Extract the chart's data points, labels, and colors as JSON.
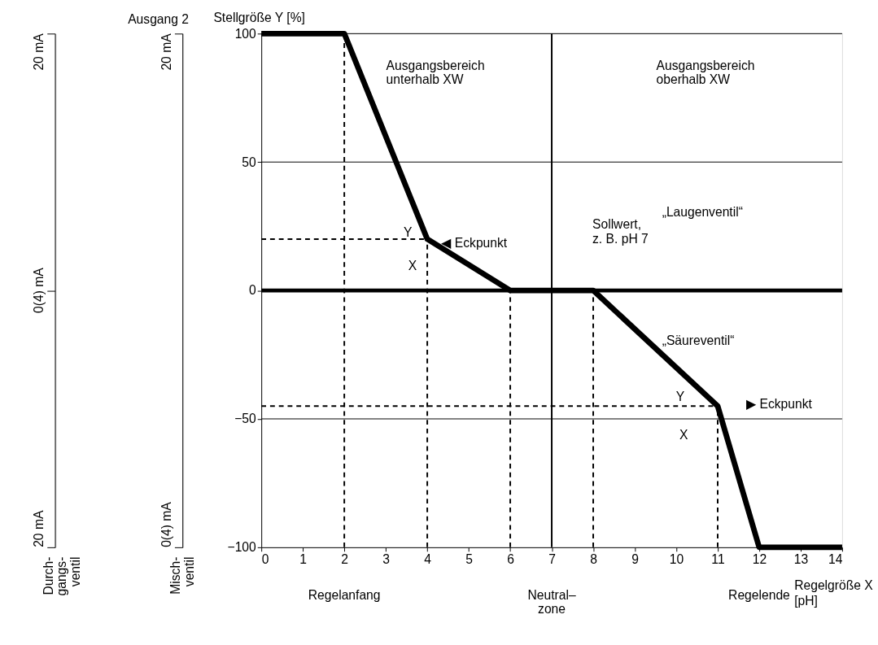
{
  "chart_data": {
    "type": "line",
    "xlabel": "Regelgröße X\n[pH]",
    "ylabel": "Stellgröße Y [%]",
    "xlim": [
      0,
      14
    ],
    "xticks": [
      0,
      1,
      2,
      3,
      4,
      5,
      6,
      7,
      8,
      9,
      10,
      11,
      12,
      13,
      14
    ],
    "ylim": [
      -100,
      100
    ],
    "yticks": [
      -100,
      -50,
      0,
      50,
      100
    ],
    "series": [
      {
        "color": "#000000",
        "x": [
          0,
          2,
          4,
          6,
          8,
          11,
          12,
          14
        ],
        "values": [
          100,
          100,
          20,
          0,
          0,
          -45,
          -100,
          -100
        ]
      },
      {
        "color": "#000000",
        "line_style": "dashed",
        "x": [
          2,
          2
        ],
        "values": [
          -100,
          100
        ]
      },
      {
        "color": "#000000",
        "line_style": "dashed",
        "x": [
          4,
          4
        ],
        "values": [
          -100,
          20
        ]
      },
      {
        "color": "#000000",
        "line_style": "dashed",
        "x": [
          0,
          4
        ],
        "values": [
          20,
          20
        ]
      },
      {
        "color": "#000000",
        "line_style": "dashed",
        "x": [
          6,
          6
        ],
        "values": [
          -100,
          0
        ]
      },
      {
        "color": "#000000",
        "line_style": "dashed",
        "x": [
          8,
          8
        ],
        "values": [
          -100,
          0
        ]
      },
      {
        "color": "#000000",
        "line_style": "dashed",
        "x": [
          11,
          11
        ],
        "values": [
          -100,
          -45
        ]
      },
      {
        "color": "#000000",
        "line_style": "dashed",
        "x": [
          0,
          11
        ],
        "values": [
          -45,
          -45
        ]
      }
    ],
    "ref_lines": [
      {
        "axis": "y",
        "value": 0,
        "color": "#000000"
      },
      {
        "axis": "x",
        "value": 7,
        "color": "#000000"
      },
      {
        "axis": "y",
        "value": 100,
        "color": "#000000"
      },
      {
        "axis": "y",
        "value": 50,
        "color": "#000000"
      },
      {
        "axis": "y",
        "value": -50,
        "color": "#000000"
      }
    ],
    "annotations": [
      "Ausgang 2",
      "Durch-\ngangs-\nventil",
      "20 mA",
      "0(4) mA",
      "20 mA",
      "Misch-\nventil",
      "20 mA",
      "0(4) mA",
      "Ausgangsbereich\nunterhalb XW",
      "Ausgangsbereich\noberhalb XW",
      "„Laugenventil“",
      "„Säureventil“",
      "Y",
      "X",
      "◀ Eckpunkt",
      "Sollwert,\nz. B. pH 7",
      "Y",
      "X",
      "▶ Eckpunkt",
      "Regelanfang",
      "Neutral–\nzone",
      "Regelende"
    ]
  }
}
